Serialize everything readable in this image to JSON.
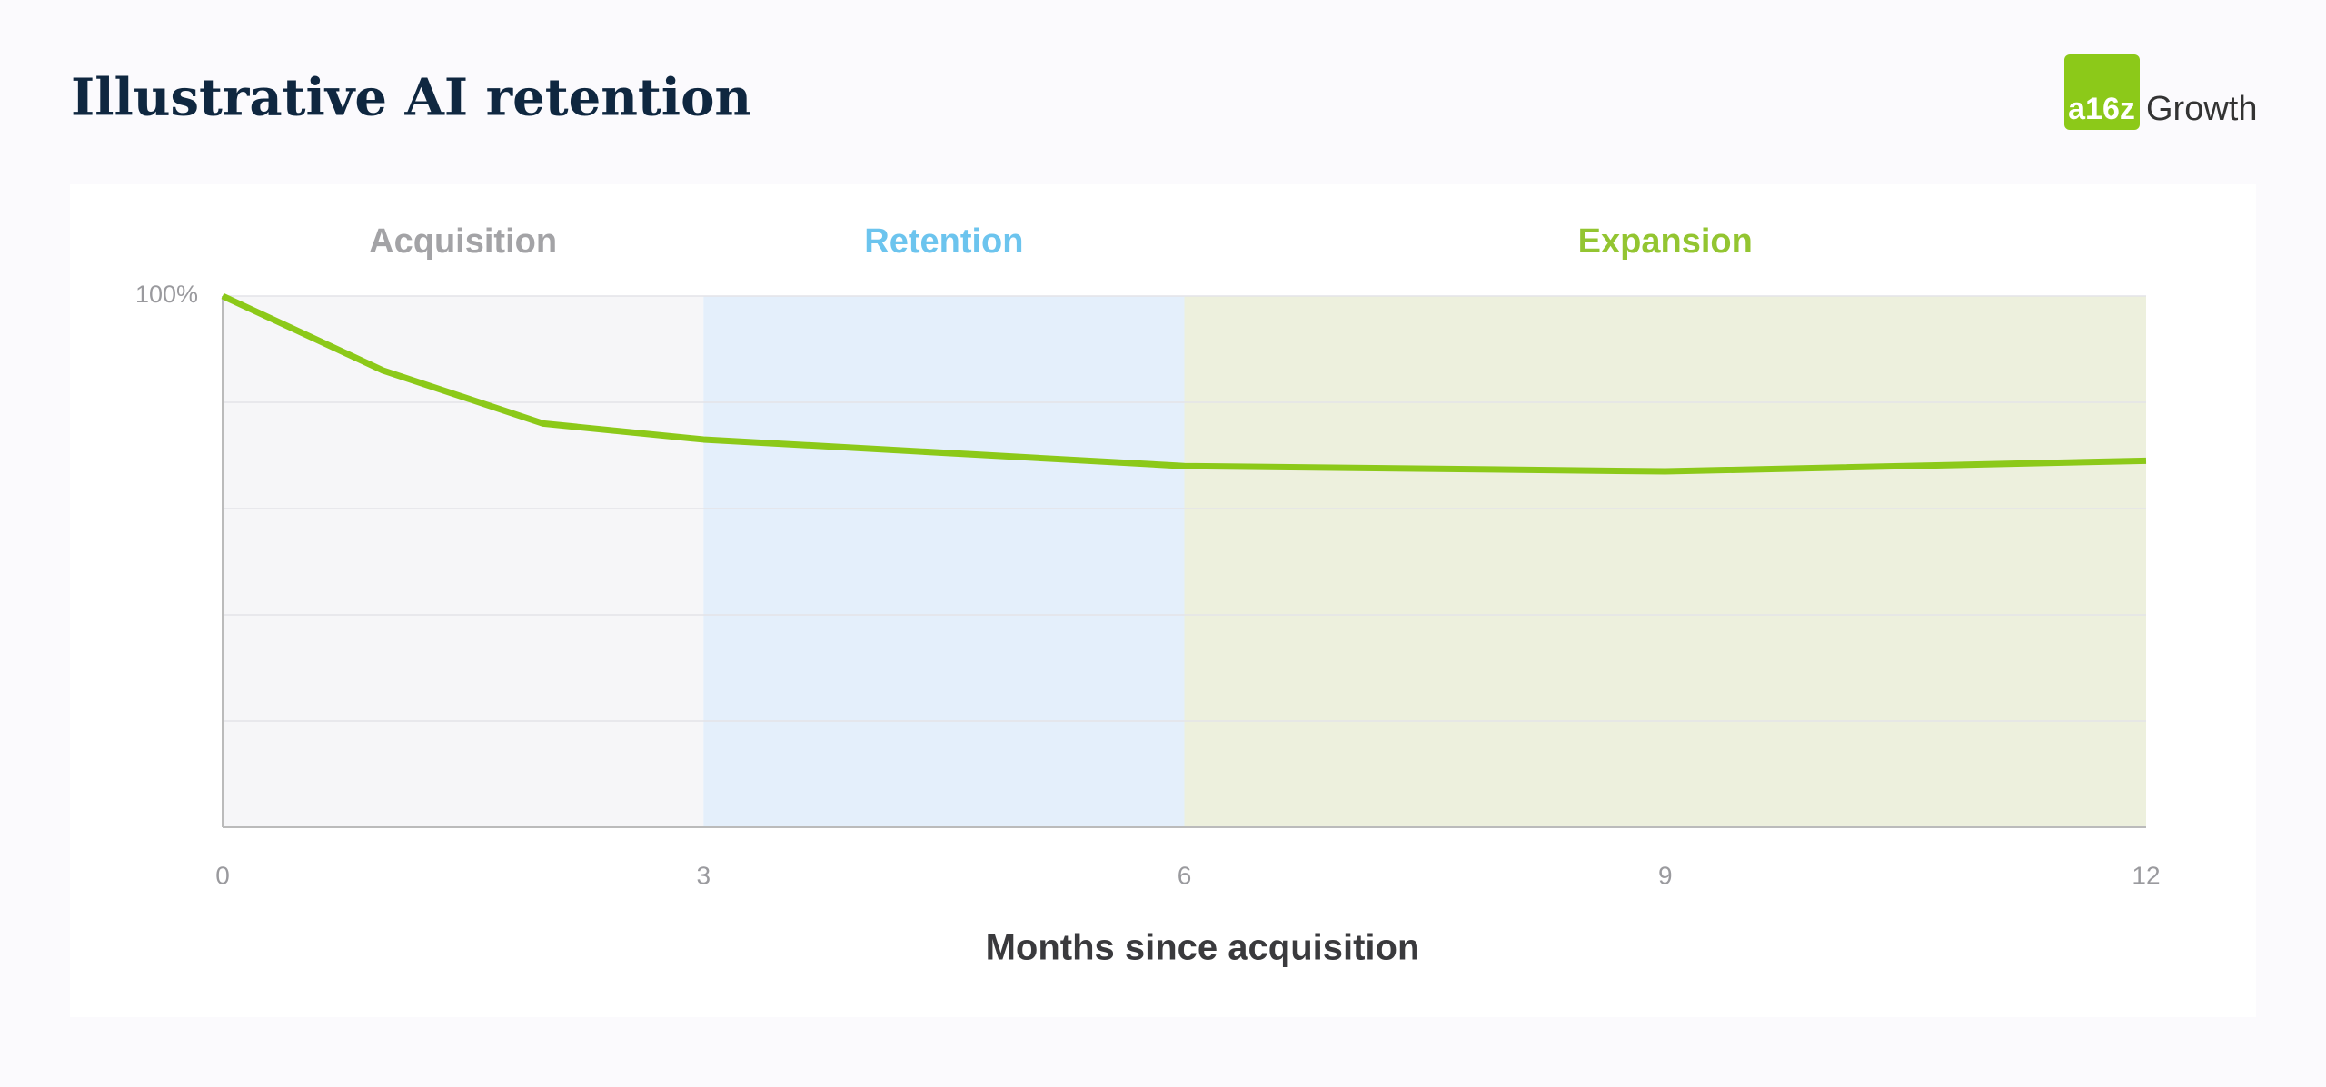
{
  "header": {
    "title": "Illustrative AI retention",
    "logo": {
      "mark": "a16z",
      "text": "Growth"
    }
  },
  "chart_data": {
    "type": "line",
    "x": [
      0,
      1,
      2,
      3,
      6,
      9,
      12
    ],
    "series": [
      {
        "name": null,
        "color": "#8cc919",
        "values": [
          100,
          86,
          76,
          73,
          68,
          67,
          69
        ]
      }
    ],
    "xlim": [
      0,
      12
    ],
    "xticks": [
      0,
      3,
      6,
      9,
      12
    ],
    "ylim": [
      0,
      100
    ],
    "yticks": [
      {
        "value": 20,
        "label": null
      },
      {
        "value": 40,
        "label": null
      },
      {
        "value": 60,
        "label": null
      },
      {
        "value": 80,
        "label": null
      },
      {
        "value": 100,
        "label": "100%"
      }
    ],
    "grid": true,
    "xlabel": "Months since acquisition",
    "regions": [
      {
        "label": "Acquisition",
        "start": 0,
        "end": 3,
        "color": "#f6f6f8",
        "text_color": "#a3a3a6"
      },
      {
        "label": "Retention",
        "start": 3,
        "end": 6,
        "color": "#e4effb",
        "text_color": "#6cc4ee"
      },
      {
        "label": "Expansion",
        "start": 6,
        "end": 12,
        "color": "#edf0dd",
        "text_color": "#93c531"
      }
    ]
  }
}
